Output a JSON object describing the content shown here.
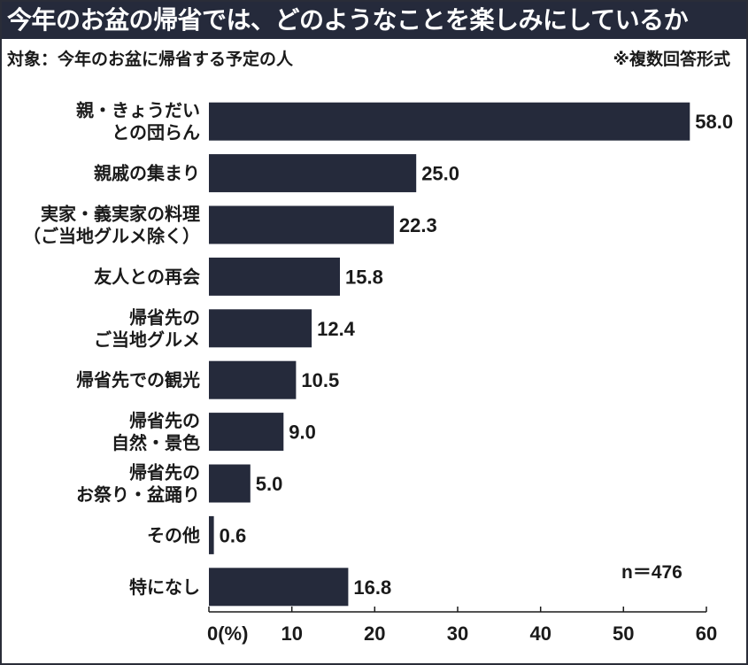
{
  "header": {
    "title": "今年のお盆の帰省では、どのようなことを楽しみにしているか",
    "subject": "対象：今年のお盆に帰省する予定の人",
    "note": "※複数回答形式"
  },
  "sample_size": "n＝476",
  "colors": {
    "bar": "#252a3b",
    "title_bg": "#252a3b",
    "title_text": "#ffffff",
    "text": "#1a1a1a"
  },
  "chart_data": {
    "type": "bar",
    "orientation": "horizontal",
    "title": "今年のお盆の帰省では、どのようなことを楽しみにしているか",
    "categories": [
      [
        "親・きょうだい",
        "との団らん"
      ],
      [
        "親戚の集まり"
      ],
      [
        "実家・義実家の料理",
        "（ご当地グルメ除く）"
      ],
      [
        "友人との再会"
      ],
      [
        "帰省先の",
        "ご当地グルメ"
      ],
      [
        "帰省先での観光"
      ],
      [
        "帰省先の",
        "自然・景色"
      ],
      [
        "帰省先の",
        "お祭り・盆踊り"
      ],
      [
        "その他"
      ],
      [
        "特になし"
      ]
    ],
    "values": [
      58.0,
      25.0,
      22.3,
      15.8,
      12.4,
      10.5,
      9.0,
      5.0,
      0.6,
      16.8
    ],
    "value_labels": [
      "58.0",
      "25.0",
      "22.3",
      "15.8",
      "12.4",
      "10.5",
      "9.0",
      "5.0",
      "0.6",
      "16.8"
    ],
    "xlim": [
      0,
      60
    ],
    "xticks": [
      0,
      10,
      20,
      30,
      40,
      50,
      60
    ],
    "xtick_labels": [
      "0(%)",
      "10",
      "20",
      "30",
      "40",
      "50",
      "60"
    ],
    "xlabel": "",
    "ylabel": "",
    "grid": false,
    "legend": "none"
  }
}
